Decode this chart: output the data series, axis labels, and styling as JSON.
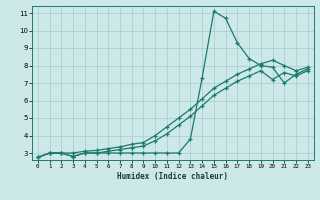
{
  "title": "",
  "xlabel": "Humidex (Indice chaleur)",
  "bg_color": "#cce8e8",
  "line_color": "#1a7a6e",
  "grid_color": "#aacccc",
  "xlim": [
    -0.5,
    23.5
  ],
  "ylim": [
    2.6,
    11.4
  ],
  "xticks": [
    0,
    1,
    2,
    3,
    4,
    5,
    6,
    7,
    8,
    9,
    10,
    11,
    12,
    13,
    14,
    15,
    16,
    17,
    18,
    19,
    20,
    21,
    22,
    23
  ],
  "yticks": [
    3,
    4,
    5,
    6,
    7,
    8,
    9,
    10,
    11
  ],
  "series1_x": [
    0,
    1,
    2,
    3,
    4,
    5,
    6,
    7,
    8,
    9,
    10,
    11,
    12,
    13,
    14,
    15,
    16,
    17,
    18,
    19,
    20,
    21,
    22,
    23
  ],
  "series1_y": [
    2.75,
    3.0,
    3.0,
    2.8,
    3.0,
    3.0,
    3.0,
    3.0,
    3.0,
    3.0,
    3.0,
    3.0,
    3.0,
    3.8,
    7.3,
    11.1,
    10.7,
    9.3,
    8.4,
    8.0,
    7.9,
    7.0,
    7.5,
    7.8
  ],
  "series2_x": [
    0,
    1,
    2,
    3,
    4,
    5,
    6,
    7,
    8,
    9,
    10,
    11,
    12,
    13,
    14,
    15,
    16,
    17,
    18,
    19,
    20,
    21,
    22,
    23
  ],
  "series2_y": [
    2.75,
    3.0,
    3.0,
    3.0,
    3.1,
    3.15,
    3.25,
    3.35,
    3.5,
    3.6,
    4.0,
    4.5,
    5.0,
    5.5,
    6.1,
    6.7,
    7.1,
    7.5,
    7.8,
    8.1,
    8.3,
    8.0,
    7.7,
    7.9
  ],
  "series3_x": [
    0,
    1,
    2,
    3,
    4,
    5,
    6,
    7,
    8,
    9,
    10,
    11,
    12,
    13,
    14,
    15,
    16,
    17,
    18,
    19,
    20,
    21,
    22,
    23
  ],
  "series3_y": [
    2.75,
    3.0,
    3.0,
    2.8,
    3.0,
    3.0,
    3.1,
    3.2,
    3.3,
    3.4,
    3.7,
    4.1,
    4.6,
    5.1,
    5.7,
    6.3,
    6.7,
    7.1,
    7.4,
    7.7,
    7.2,
    7.6,
    7.4,
    7.7
  ]
}
